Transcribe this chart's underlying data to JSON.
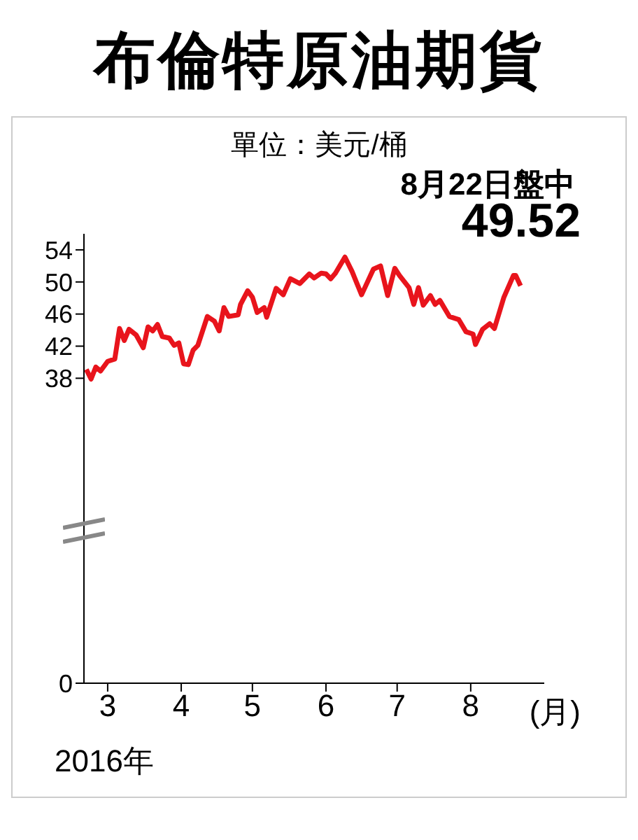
{
  "chart_data": {
    "type": "line",
    "title": "布倫特原油期貨",
    "subtitle": "單位：美元/桶",
    "xlabel": "(月)",
    "annotations": [
      "8月22日盤中",
      {
        "text": "49.52",
        "x": "2016-08-22",
        "y": 49.52
      },
      "2016年"
    ],
    "x": [
      "2016-02-21",
      "2016-02-23",
      "2016-02-25",
      "2016-02-27",
      "2016-03-01",
      "2016-03-04",
      "2016-03-06",
      "2016-03-08",
      "2016-03-10",
      "2016-03-13",
      "2016-03-16",
      "2016-03-18",
      "2016-03-20",
      "2016-03-22",
      "2016-03-24",
      "2016-03-27",
      "2016-03-29",
      "2016-03-31",
      "2016-04-02",
      "2016-04-04",
      "2016-04-06",
      "2016-04-08",
      "2016-04-12",
      "2016-04-15",
      "2016-04-17",
      "2016-04-19",
      "2016-04-21",
      "2016-04-25",
      "2016-04-26",
      "2016-04-29",
      "2016-05-01",
      "2016-05-03",
      "2016-05-06",
      "2016-05-07",
      "2016-05-11",
      "2016-05-14",
      "2016-05-17",
      "2016-05-21",
      "2016-05-25",
      "2016-05-27",
      "2016-05-30",
      "2016-06-01",
      "2016-06-03",
      "2016-06-05",
      "2016-06-09",
      "2016-06-12",
      "2016-06-16",
      "2016-06-21",
      "2016-06-24",
      "2016-06-27",
      "2016-06-30",
      "2016-07-02",
      "2016-07-06",
      "2016-07-08",
      "2016-07-10",
      "2016-07-12",
      "2016-07-15",
      "2016-07-17",
      "2016-07-19",
      "2016-07-23",
      "2016-07-27",
      "2016-07-30",
      "2016-08-02",
      "2016-08-03",
      "2016-08-06",
      "2016-08-09",
      "2016-08-11",
      "2016-08-15",
      "2016-08-19",
      "2016-08-20",
      "2016-08-22"
    ],
    "series": [
      {
        "color": "#e8141c",
        "values": [
          39.1,
          37.9,
          39.4,
          38.9,
          40.1,
          40.4,
          44.2,
          42.7,
          44.1,
          43.4,
          41.8,
          44.4,
          43.9,
          44.7,
          43.2,
          43.0,
          42.1,
          42.4,
          39.8,
          39.7,
          41.5,
          42.1,
          45.7,
          45.1,
          43.9,
          46.8,
          45.7,
          45.9,
          47.2,
          48.9,
          48.1,
          46.2,
          46.8,
          45.6,
          49.2,
          48.4,
          50.4,
          49.8,
          51.0,
          50.5,
          51.1,
          51.0,
          50.4,
          51.1,
          53.1,
          51.3,
          48.4,
          51.6,
          52.0,
          48.3,
          51.7,
          50.8,
          49.3,
          47.2,
          49.3,
          47.1,
          48.3,
          47.2,
          47.7,
          45.7,
          45.3,
          43.8,
          43.5,
          42.2,
          44.1,
          44.8,
          44.2,
          48.1,
          50.8,
          50.8,
          49.52
        ]
      }
    ],
    "xlim": [
      "2016-02-20",
      "2016-09-01"
    ],
    "xticks": [
      {
        "value": "2016-03-01",
        "label": "3"
      },
      {
        "value": "2016-04-01",
        "label": "4"
      },
      {
        "value": "2016-05-01",
        "label": "5"
      },
      {
        "value": "2016-06-01",
        "label": "6"
      },
      {
        "value": "2016-07-01",
        "label": "7"
      },
      {
        "value": "2016-08-01",
        "label": "8"
      }
    ],
    "ylim": [
      0,
      56
    ],
    "yticks": [
      0,
      38,
      42,
      46,
      50,
      54
    ],
    "grid": false,
    "legend": false,
    "marker": "none",
    "line_style": "solid"
  }
}
